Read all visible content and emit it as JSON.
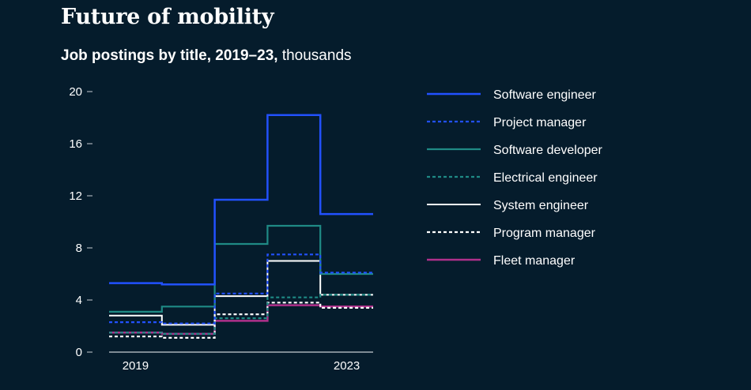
{
  "header": {
    "title": "Future of mobility",
    "subtitle_bold": "Job postings by title, 2019–23,",
    "subtitle_unit": "thousands"
  },
  "colors": {
    "background": "#051c2c",
    "axis": "#c8cdd2",
    "text": "#ffffff"
  },
  "chart_data": {
    "type": "line",
    "step": true,
    "title": "Job postings by title, 2019–23, thousands",
    "xlabel": "",
    "ylabel": "",
    "x": [
      2019,
      2020,
      2021,
      2022,
      2023
    ],
    "x_tick_labels": [
      {
        "x": 2019,
        "label": "2019"
      },
      {
        "x": 2023,
        "label": "2023"
      }
    ],
    "ylim": [
      0,
      20
    ],
    "y_ticks": [
      0,
      4,
      8,
      12,
      16,
      20
    ],
    "y_tick_labels": [
      "0",
      "4",
      "8",
      "12",
      "16",
      "20"
    ],
    "legend_position": "right",
    "series": [
      {
        "name": "Software engineer",
        "color": "#2251ff",
        "dash": "solid",
        "width": 2.5,
        "values": [
          5.3,
          5.2,
          11.7,
          18.2,
          10.6
        ]
      },
      {
        "name": "Project manager",
        "color": "#2251ff",
        "dash": "dashed",
        "width": 2.2,
        "values": [
          2.3,
          2.2,
          4.5,
          7.5,
          6.1
        ]
      },
      {
        "name": "Software developer",
        "color": "#1f8a85",
        "dash": "solid",
        "width": 2.2,
        "values": [
          3.1,
          3.5,
          8.3,
          9.7,
          6.0
        ]
      },
      {
        "name": "Electrical engineer",
        "color": "#1f8a85",
        "dash": "dashed",
        "width": 2.2,
        "values": [
          1.5,
          1.4,
          2.6,
          4.2,
          4.4
        ]
      },
      {
        "name": "System engineer",
        "color": "#ffffff",
        "dash": "solid",
        "width": 2.0,
        "values": [
          2.8,
          2.1,
          4.3,
          7.0,
          4.4
        ]
      },
      {
        "name": "Program manager",
        "color": "#ffffff",
        "dash": "dashed",
        "width": 2.2,
        "values": [
          1.2,
          1.1,
          2.9,
          3.8,
          3.4
        ]
      },
      {
        "name": "Fleet manager",
        "color": "#b0308b",
        "dash": "solid",
        "width": 2.5,
        "values": [
          1.5,
          1.4,
          2.4,
          3.6,
          3.5
        ]
      }
    ]
  }
}
